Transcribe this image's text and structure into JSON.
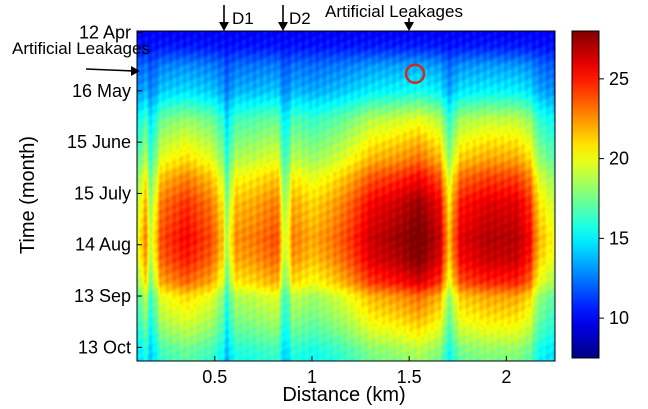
{
  "chart_data": {
    "type": "heatmap",
    "xlabel": "Distance (km)",
    "ylabel": "Time (month)",
    "xlim": [
      0.1,
      2.25
    ],
    "x_ticks": [
      {
        "value": 0.5,
        "label": "0.5"
      },
      {
        "value": 1.0,
        "label": "1"
      },
      {
        "value": 1.5,
        "label": "1.5"
      },
      {
        "value": 2.0,
        "label": "2"
      }
    ],
    "y_ticks": [
      {
        "value": "2000-04-12",
        "label": "12 Apr"
      },
      {
        "value": "2000-05-16",
        "label": "16 May"
      },
      {
        "value": "2000-06-15",
        "label": "15 June"
      },
      {
        "value": "2000-07-15",
        "label": "15 July"
      },
      {
        "value": "2000-08-14",
        "label": "14 Aug"
      },
      {
        "value": "2000-09-13",
        "label": "13 Sep"
      },
      {
        "value": "2000-10-13",
        "label": "13 Oct"
      }
    ],
    "colorbar": {
      "min": 7.5,
      "max": 28,
      "ticks": [
        10,
        15,
        20,
        25
      ],
      "colormap": "jet"
    },
    "annotations": [
      {
        "text": "D1",
        "x": 0.56
      },
      {
        "text": "D2",
        "x": 0.86
      },
      {
        "text": "Artificial Leakages",
        "x": 1.5
      },
      {
        "text": "Artificial Leakages",
        "date": "2000-05-05"
      }
    ],
    "marker": {
      "shape": "circle",
      "color": "#d42a1e",
      "x": 1.53,
      "date": "2000-05-06"
    },
    "profile_summer": [
      {
        "x": 0.1,
        "v": 18.5
      },
      {
        "x": 0.14,
        "v": 22
      },
      {
        "x": 0.17,
        "v": 18
      },
      {
        "x": 0.22,
        "v": 23
      },
      {
        "x": 0.35,
        "v": 24.5
      },
      {
        "x": 0.48,
        "v": 23
      },
      {
        "x": 0.54,
        "v": 20.5
      },
      {
        "x": 0.56,
        "v": 17.5
      },
      {
        "x": 0.6,
        "v": 21.5
      },
      {
        "x": 0.7,
        "v": 22
      },
      {
        "x": 0.82,
        "v": 23
      },
      {
        "x": 0.86,
        "v": 18
      },
      {
        "x": 0.9,
        "v": 22
      },
      {
        "x": 1.0,
        "v": 21
      },
      {
        "x": 1.1,
        "v": 22
      },
      {
        "x": 1.2,
        "v": 23.5
      },
      {
        "x": 1.3,
        "v": 25.5
      },
      {
        "x": 1.45,
        "v": 26.5
      },
      {
        "x": 1.55,
        "v": 27.5
      },
      {
        "x": 1.66,
        "v": 25.5
      },
      {
        "x": 1.7,
        "v": 20.5
      },
      {
        "x": 1.76,
        "v": 25
      },
      {
        "x": 1.9,
        "v": 26
      },
      {
        "x": 2.05,
        "v": 26
      },
      {
        "x": 2.12,
        "v": 24.5
      },
      {
        "x": 2.16,
        "v": 21
      },
      {
        "x": 2.25,
        "v": 19
      }
    ],
    "seasonal_profile": [
      {
        "date": "2000-04-12",
        "v": 10
      },
      {
        "date": "2000-04-20",
        "v": 10.5
      },
      {
        "date": "2000-05-01",
        "v": 12.5
      },
      {
        "date": "2000-05-16",
        "v": 14
      },
      {
        "date": "2000-06-01",
        "v": 17
      },
      {
        "date": "2000-06-15",
        "v": 18.5
      },
      {
        "date": "2000-06-25",
        "v": 19.5
      },
      {
        "date": "2000-07-05",
        "v": 21
      },
      {
        "date": "2000-07-20",
        "v": 22.5
      },
      {
        "date": "2000-08-10",
        "v": 23.5
      },
      {
        "date": "2000-08-22",
        "v": 23
      },
      {
        "date": "2000-09-05",
        "v": 21.5
      },
      {
        "date": "2000-09-13",
        "v": 19.5
      },
      {
        "date": "2000-09-25",
        "v": 18.5
      },
      {
        "date": "2000-10-05",
        "v": 17.5
      },
      {
        "date": "2000-10-13",
        "v": 16.5
      },
      {
        "date": "2000-10-20",
        "v": 16
      }
    ]
  }
}
